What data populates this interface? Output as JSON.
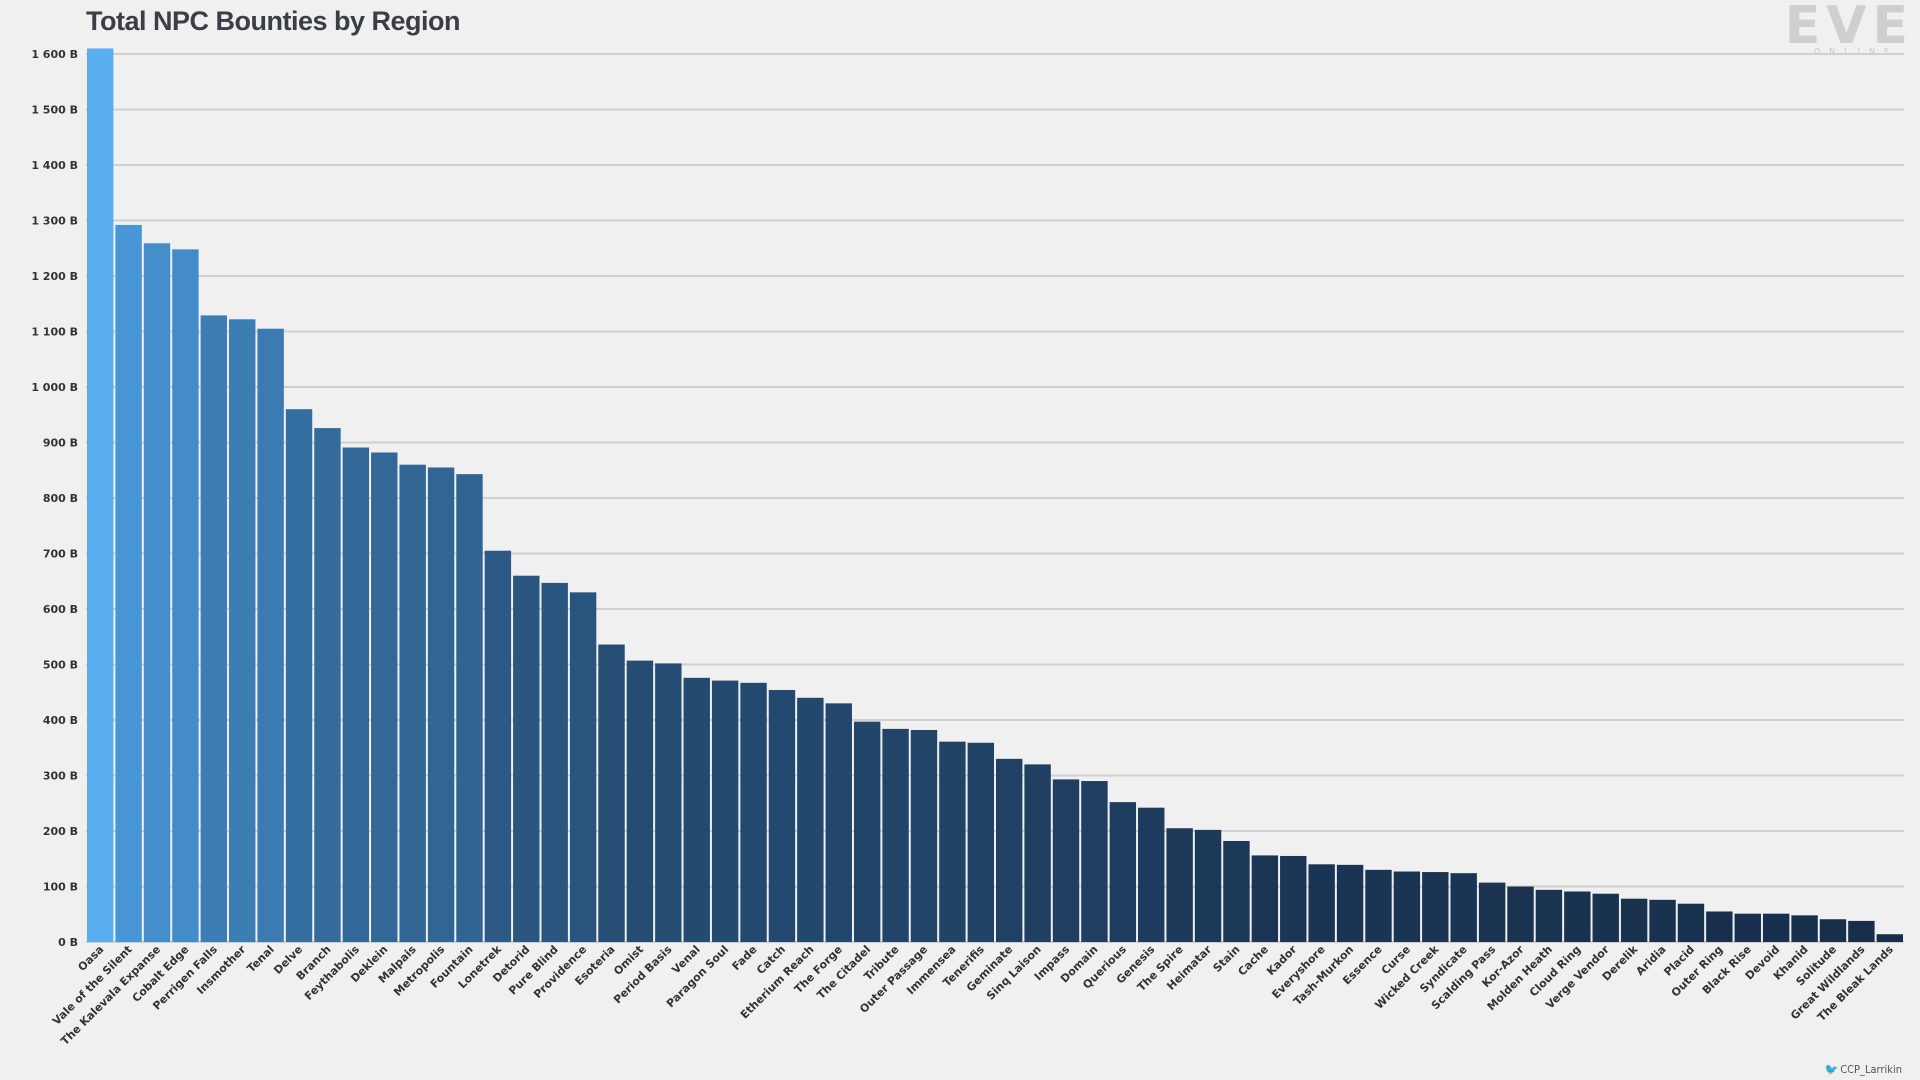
{
  "logo": {
    "main": "EVE",
    "sub": "ONLINE"
  },
  "credit": "CCP_Larrikin",
  "chart_data": {
    "type": "bar",
    "title": "Total NPC Bounties by Region",
    "xlabel": "",
    "ylabel": "",
    "ylim": [
      0,
      1600
    ],
    "grid": true,
    "y_ticks": [
      0,
      100,
      200,
      300,
      400,
      500,
      600,
      700,
      800,
      900,
      1000,
      1100,
      1200,
      1300,
      1400,
      1500,
      1600
    ],
    "y_tick_labels": [
      "0 B",
      "100 B",
      "200 B",
      "300 B",
      "400 B",
      "500 B",
      "600 B",
      "700 B",
      "800 B",
      "900 B",
      "1 000 B",
      "1 100 B",
      "1 200 B",
      "1 300 B",
      "1 400 B",
      "1 500 B",
      "1 600 B"
    ],
    "categories": [
      "Oasa",
      "Vale of the Silent",
      "The Kalevala Expanse",
      "Cobalt Edge",
      "Perrigen Falls",
      "Insmother",
      "Tenal",
      "Delve",
      "Branch",
      "Feythabolis",
      "Deklein",
      "Malpais",
      "Metropolis",
      "Fountain",
      "Lonetrek",
      "Detorid",
      "Pure Blind",
      "Providence",
      "Esoteria",
      "Omist",
      "Period Basis",
      "Venal",
      "Paragon Soul",
      "Fade",
      "Catch",
      "Etherium Reach",
      "The Forge",
      "The Citadel",
      "Tribute",
      "Outer Passage",
      "Immensea",
      "Tenerifis",
      "Geminate",
      "Sinq Laison",
      "Impass",
      "Domain",
      "Querious",
      "Genesis",
      "The Spire",
      "Heimatar",
      "Stain",
      "Cache",
      "Kador",
      "Everyshore",
      "Tash-Murkon",
      "Essence",
      "Curse",
      "Wicked Creek",
      "Syndicate",
      "Scalding Pass",
      "Kor-Azor",
      "Molden Heath",
      "Cloud Ring",
      "Verge Vendor",
      "Derelik",
      "Aridia",
      "Placid",
      "Outer Ring",
      "Black Rise",
      "Devoid",
      "Khanid",
      "Solitude",
      "Great Wildlands",
      "The Bleak Lands"
    ],
    "values": [
      1610,
      1292,
      1259,
      1248,
      1129,
      1122,
      1105,
      960,
      926,
      891,
      882,
      860,
      855,
      843,
      705,
      660,
      647,
      630,
      536,
      507,
      502,
      476,
      471,
      467,
      454,
      440,
      430,
      397,
      384,
      382,
      361,
      359,
      330,
      320,
      293,
      290,
      252,
      242,
      205,
      202,
      182,
      156,
      155,
      140,
      139,
      130,
      127,
      126,
      124,
      107,
      100,
      94,
      91,
      87,
      78,
      76,
      69,
      55,
      51,
      51,
      48,
      41,
      38,
      14
    ],
    "colors": {
      "first": "#5aaef0",
      "top": "#4896d6",
      "bottom": "#172e4a",
      "grid": "#cfcfcf",
      "axis_text": "#333333"
    }
  }
}
